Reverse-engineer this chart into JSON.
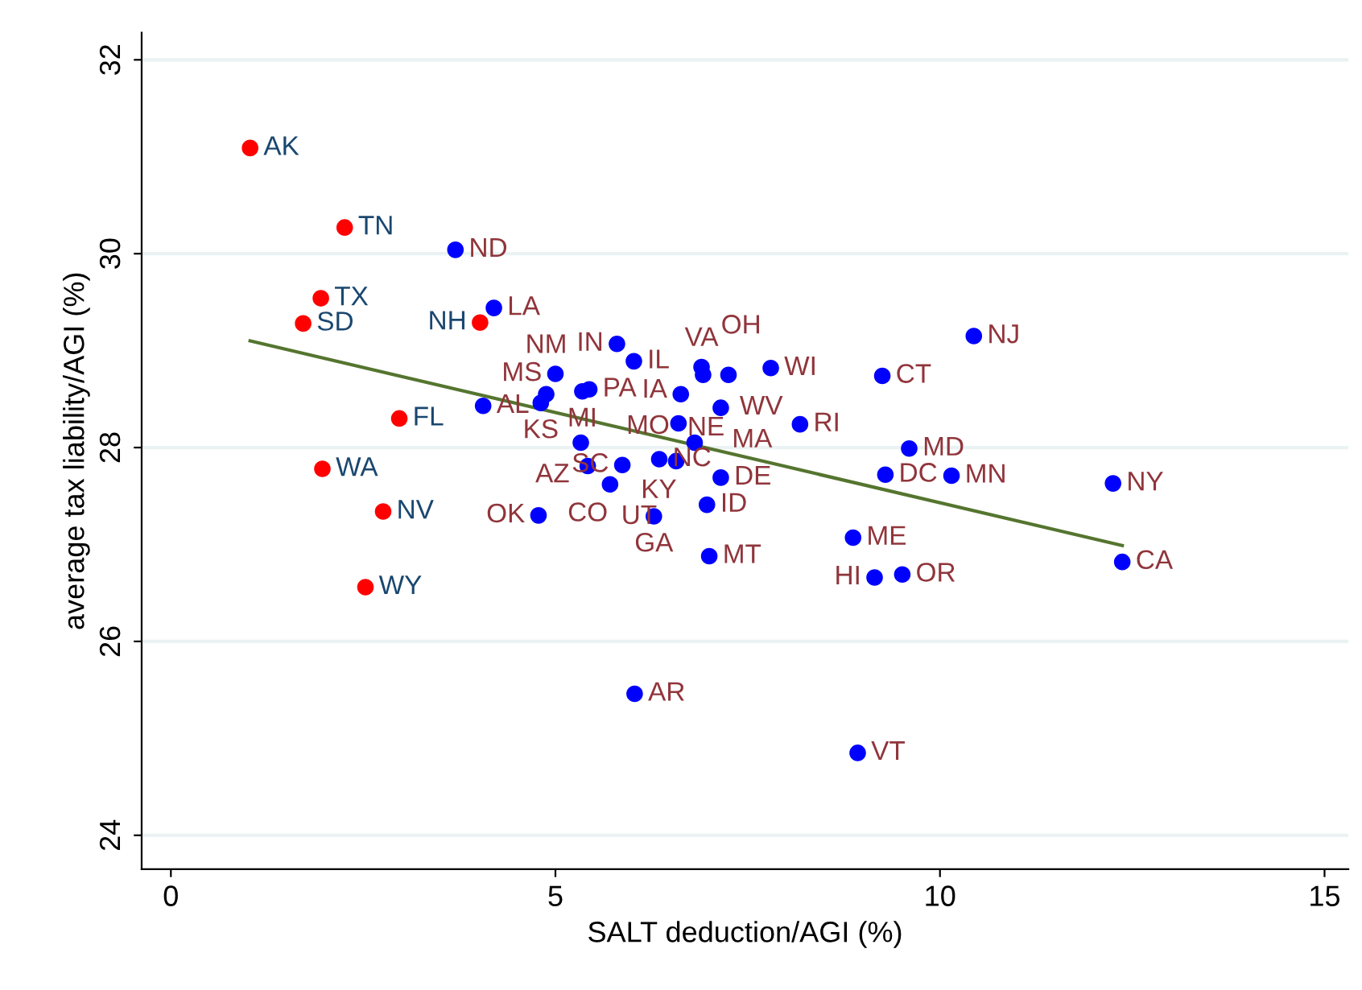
{
  "chart_data": {
    "type": "scatter",
    "xlabel": "SALT deduction/AGI (%)",
    "ylabel": "average tax liability/AGI (%)",
    "xlim": [
      -0.38,
      15.31
    ],
    "ylim": [
      23.65,
      32.28
    ],
    "xticks": [
      0,
      5,
      10,
      15
    ],
    "yticks": [
      24,
      26,
      28,
      30,
      32
    ],
    "grid": "y",
    "marker": "circle",
    "series": [
      {
        "color": "#ff0000",
        "x": [
          1.03,
          2.26,
          1.95,
          1.72,
          4.02,
          2.97,
          1.97,
          2.76,
          2.53
        ],
        "values": [
          31.09,
          30.27,
          29.54,
          29.28,
          29.29,
          28.3,
          27.78,
          27.34,
          26.56
        ],
        "value_labels": [
          "AK",
          "TN",
          "TX",
          "SD",
          "NH",
          "FL",
          "WA",
          "NV",
          "WY"
        ]
      },
      {
        "color": "#0000ff",
        "x": [
          3.7,
          4.2,
          4.06,
          5.8,
          6.02,
          5.0,
          4.88,
          4.81,
          5.35,
          5.44,
          6.9,
          6.92,
          7.25,
          7.8,
          6.63,
          7.15,
          6.6,
          8.18,
          9.25,
          10.44,
          9.6,
          9.29,
          10.15,
          12.25,
          12.37,
          6.81,
          5.33,
          5.42,
          5.87,
          6.35,
          6.57,
          5.71,
          7.15,
          6.97,
          4.78,
          6.28,
          7.0,
          8.87,
          9.15,
          9.51,
          6.03,
          8.93
        ],
        "values": [
          30.04,
          29.44,
          28.43,
          29.07,
          28.89,
          28.76,
          28.55,
          28.46,
          28.58,
          28.6,
          28.83,
          28.75,
          28.75,
          28.82,
          28.55,
          28.41,
          28.25,
          28.24,
          28.74,
          29.15,
          27.99,
          27.72,
          27.71,
          27.63,
          26.82,
          28.05,
          28.05,
          27.81,
          27.82,
          27.88,
          27.86,
          27.62,
          27.69,
          27.41,
          27.3,
          27.29,
          26.88,
          27.07,
          26.66,
          26.69,
          25.46,
          24.85
        ],
        "value_labels": [
          "ND",
          "LA",
          "AL",
          "IN",
          "IL",
          "MS",
          "NM",
          "KS",
          "MI",
          "PA",
          "VA",
          "OH",
          "WV",
          "WI",
          "MO",
          "MA",
          "IA",
          "RI",
          "CT",
          "NJ",
          "MD",
          "DC",
          "MN",
          "NY",
          "CA",
          "KY",
          "AZ",
          "CO",
          "SC",
          "NC",
          "NE",
          "UT",
          "DE",
          "ID",
          "OK",
          "GA",
          "MT",
          "ME",
          "HI",
          "OR",
          "AR",
          "VT"
        ]
      },
      {
        "type": "line",
        "marker": "none",
        "color": "#55752f",
        "x": [
          1.03,
          12.37
        ],
        "values": [
          29.1,
          26.99
        ]
      }
    ]
  }
}
